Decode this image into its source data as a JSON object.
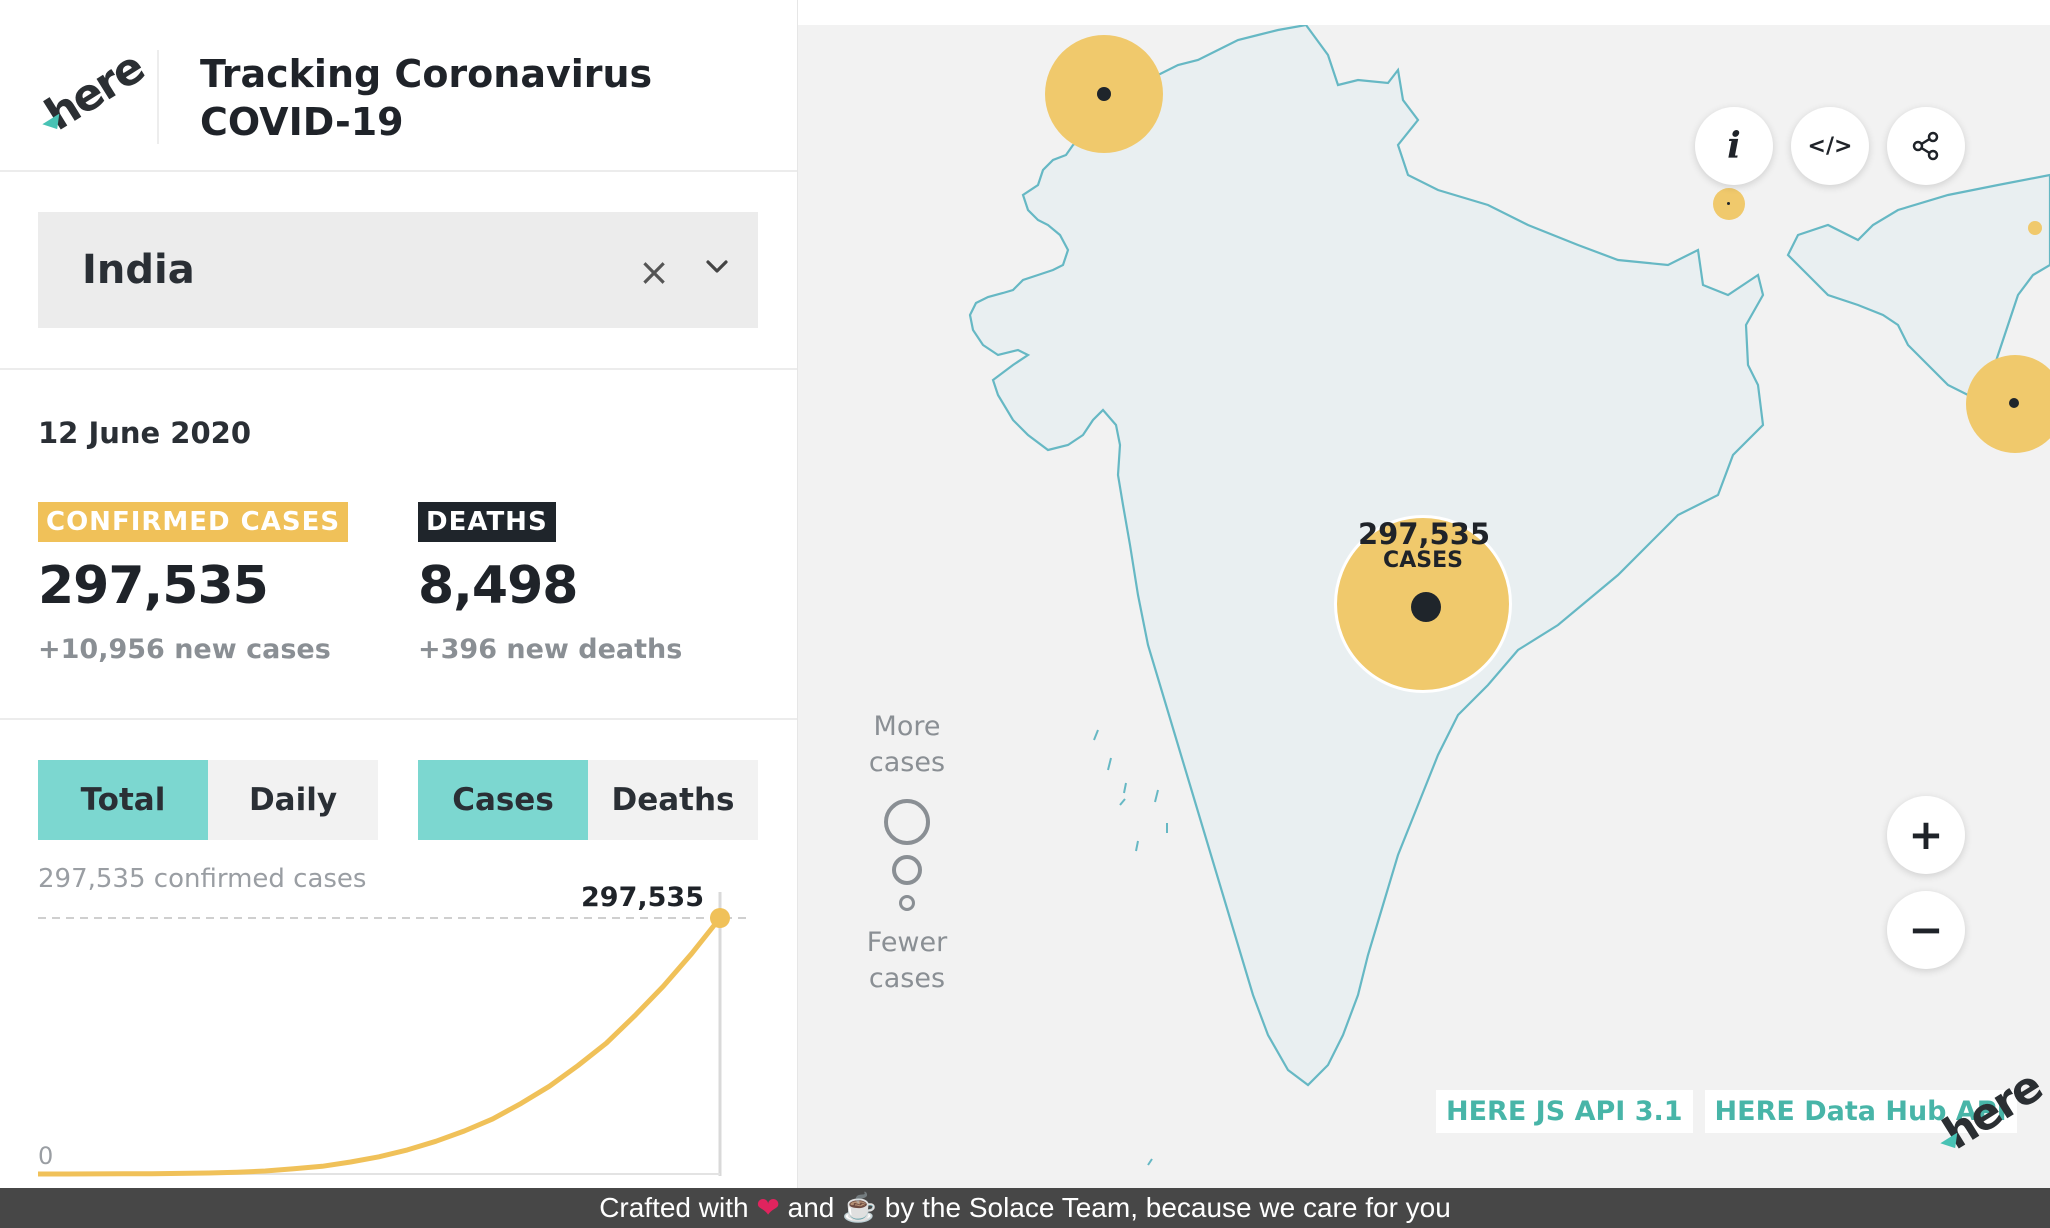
{
  "header": {
    "logo_text": "here",
    "title_line1": "Tracking Coronavirus",
    "title_line2": "COVID-19"
  },
  "selector": {
    "country": "India",
    "clear_symbol": "×"
  },
  "stats": {
    "date": "12 June 2020",
    "confirmed": {
      "label": "CONFIRMED CASES",
      "value": "297,535",
      "new": "+10,956 new cases",
      "color": "#f0c159"
    },
    "deaths": {
      "label": "DEATHS",
      "value": "8,498",
      "new": "+396 new deaths",
      "color": "#1f252b"
    }
  },
  "toggles": {
    "mode": [
      {
        "label": "Total",
        "active": true
      },
      {
        "label": "Daily",
        "active": false
      }
    ],
    "metric": [
      {
        "label": "Cases",
        "active": true
      },
      {
        "label": "Deaths",
        "active": false
      }
    ]
  },
  "chart_data": {
    "type": "area",
    "max_label": "297,535 confirmed cases",
    "peak_label": "297,535",
    "zero_label": "0",
    "ylim": [
      0,
      297535
    ],
    "color": "#f0c159",
    "values": [
      1,
      50,
      100,
      200,
      400,
      700,
      1200,
      2000,
      3500,
      6000,
      9000,
      14000,
      20000,
      28000,
      38000,
      50000,
      64000,
      82000,
      102000,
      126000,
      152000,
      184000,
      218000,
      256000,
      297535
    ]
  },
  "map": {
    "bubble_label_value": "297,535",
    "bubble_label_unit": "CASES",
    "legend_more": [
      "More",
      "cases"
    ],
    "legend_fewer": [
      "Fewer",
      "cases"
    ],
    "buttons": {
      "info": "i",
      "code": "</>",
      "zoom_in": "+",
      "zoom_out": "−"
    },
    "credits": [
      "HERE JS API 3.1",
      "HERE Data Hub API"
    ],
    "logo_text": "here",
    "land_color": "#e9eff1",
    "coast_color": "#66b8c4",
    "bubble_color": "#f0c96c"
  },
  "footer": {
    "text_a": "Crafted with",
    "text_b": "and",
    "text_c": "by the Solace Team, because we care for you"
  }
}
